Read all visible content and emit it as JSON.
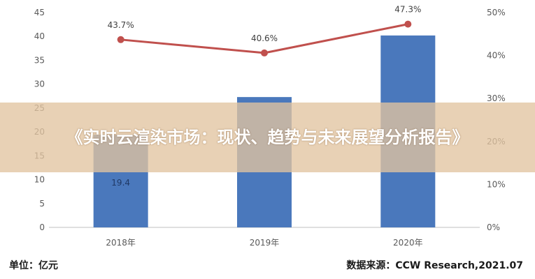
{
  "chart_data": {
    "type": "bar",
    "categories": [
      "2018年",
      "2019年",
      "2020年"
    ],
    "series": [
      {
        "type": "bar",
        "axis": "left",
        "color": "#4a78bc",
        "values": [
          19.4,
          27.3,
          40.2
        ],
        "labels": [
          "19.4",
          "",
          ""
        ]
      },
      {
        "type": "line",
        "axis": "right",
        "color": "#c0504d",
        "values": [
          43.7,
          40.6,
          47.3
        ],
        "labels": [
          "43.7%",
          "40.6%",
          "47.3%"
        ]
      }
    ],
    "ylim_left": [
      0,
      45
    ],
    "yticks_left": [
      "0",
      "5",
      "10",
      "15",
      "20",
      "25",
      "30",
      "35",
      "40",
      "45"
    ],
    "ylim_right": [
      0,
      50
    ],
    "yticks_right": [
      "0%",
      "10%",
      "20%",
      "30%",
      "40%",
      "50%"
    ],
    "grid": false,
    "legend": "none"
  },
  "overlay": {
    "title": "《实时云渲染市场：现状、趋势与未来展望分析报告》"
  },
  "footer": {
    "unit": "单位：亿元",
    "source": "数据来源：CCW Research,2021.07"
  }
}
